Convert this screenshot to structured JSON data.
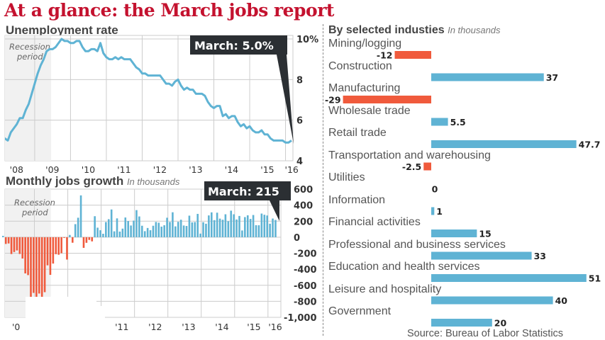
{
  "title": "At a glance: the March jobs report",
  "chart_data": [
    {
      "type": "line",
      "title": "Unemployment rate",
      "ylabel": "%",
      "ylim": [
        4,
        10
      ],
      "yticks": [
        "10%",
        "8",
        "6",
        "4"
      ],
      "xticks": [
        "'08",
        "'09",
        "'10",
        "'11",
        "'12",
        "'13",
        "'14",
        "'15",
        "'16"
      ],
      "annotation": "March: 5.0%",
      "shade_label": "Recession period",
      "color": "#5fb3d4",
      "start": "2008-01",
      "values": [
        5.0,
        4.9,
        5.1,
        5.0,
        5.4,
        5.6,
        5.8,
        6.1,
        6.1,
        6.5,
        6.8,
        7.3,
        7.8,
        8.3,
        8.7,
        9.0,
        9.4,
        9.5,
        9.5,
        9.6,
        9.8,
        10.0,
        9.9,
        9.9,
        9.8,
        9.8,
        9.9,
        9.9,
        9.6,
        9.4,
        9.4,
        9.5,
        9.5,
        9.4,
        9.8,
        9.3,
        9.1,
        9.0,
        9.0,
        9.1,
        9.0,
        9.1,
        9.0,
        9.0,
        9.0,
        8.8,
        8.6,
        8.5,
        8.3,
        8.3,
        8.2,
        8.2,
        8.2,
        8.2,
        8.2,
        8.0,
        7.8,
        7.8,
        7.7,
        7.9,
        8.0,
        7.7,
        7.5,
        7.6,
        7.5,
        7.5,
        7.3,
        7.3,
        7.3,
        7.2,
        6.9,
        6.7,
        6.6,
        6.7,
        6.7,
        6.2,
        6.3,
        6.1,
        6.2,
        6.2,
        5.9,
        5.7,
        5.8,
        5.6,
        5.7,
        5.5,
        5.4,
        5.4,
        5.5,
        5.3,
        5.3,
        5.1,
        5.0,
        5.0,
        5.0,
        5.0,
        4.9,
        4.9,
        5.0
      ]
    },
    {
      "type": "bar",
      "title": "Monthly jobs growth",
      "unit": "In thousands",
      "ylim": [
        -1000,
        600
      ],
      "yticks": [
        "600",
        "400",
        "200",
        "0",
        "-200",
        "-400",
        "-600",
        "-800",
        "-1,000"
      ],
      "xticks": [
        "'0",
        "'11",
        "'12",
        "'13",
        "'14",
        "'15",
        "'16"
      ],
      "annotation": "March: 215",
      "shade_label": "Recession period",
      "pos_color": "#5fb3d4",
      "neg_color": "#f05a3c",
      "start": "2008-01",
      "values": [
        17,
        -84,
        -78,
        -210,
        -185,
        -165,
        -209,
        -266,
        -452,
        -473,
        -769,
        -695,
        -791,
        -703,
        -823,
        -686,
        -351,
        -470,
        -329,
        -212,
        -219,
        -200,
        -7,
        -279,
        28,
        -69,
        163,
        243,
        522,
        -133,
        -70,
        -34,
        -52,
        262,
        119,
        87,
        43,
        189,
        225,
        346,
        73,
        235,
        70,
        107,
        246,
        202,
        146,
        207,
        338,
        259,
        143,
        75,
        115,
        87,
        143,
        190,
        181,
        132,
        149,
        243,
        190,
        311,
        135,
        192,
        218,
        146,
        140,
        269,
        185,
        189,
        291,
        45,
        187,
        168,
        272,
        310,
        213,
        306,
        232,
        218,
        286,
        200,
        331,
        286,
        221,
        265,
        84,
        251,
        273,
        228,
        277,
        150,
        149,
        295,
        280,
        271,
        168,
        233,
        215
      ]
    },
    {
      "type": "bar",
      "orientation": "horizontal",
      "title": "By selected industies",
      "unit": "In thousands",
      "categories": [
        "Mining/logging",
        "Construction",
        "Manufacturing",
        "Wholesale trade",
        "Retail trade",
        "Transportation and warehousing",
        "Utilities",
        "Information",
        "Financial activities",
        "Professional and business services",
        "Education and health services",
        "Leisure and hospitality",
        "Government"
      ],
      "values": [
        -12,
        37,
        -29,
        5.5,
        47.7,
        -2.5,
        0,
        1,
        15,
        33,
        51,
        40,
        20
      ],
      "value_labels": [
        "-12",
        "37",
        "-29",
        "5.5",
        "47.7",
        "-2.5",
        "0",
        "1",
        "15",
        "33",
        "51",
        "40",
        "20"
      ]
    }
  ],
  "source": "Source: Bureau of Labor Statistics"
}
